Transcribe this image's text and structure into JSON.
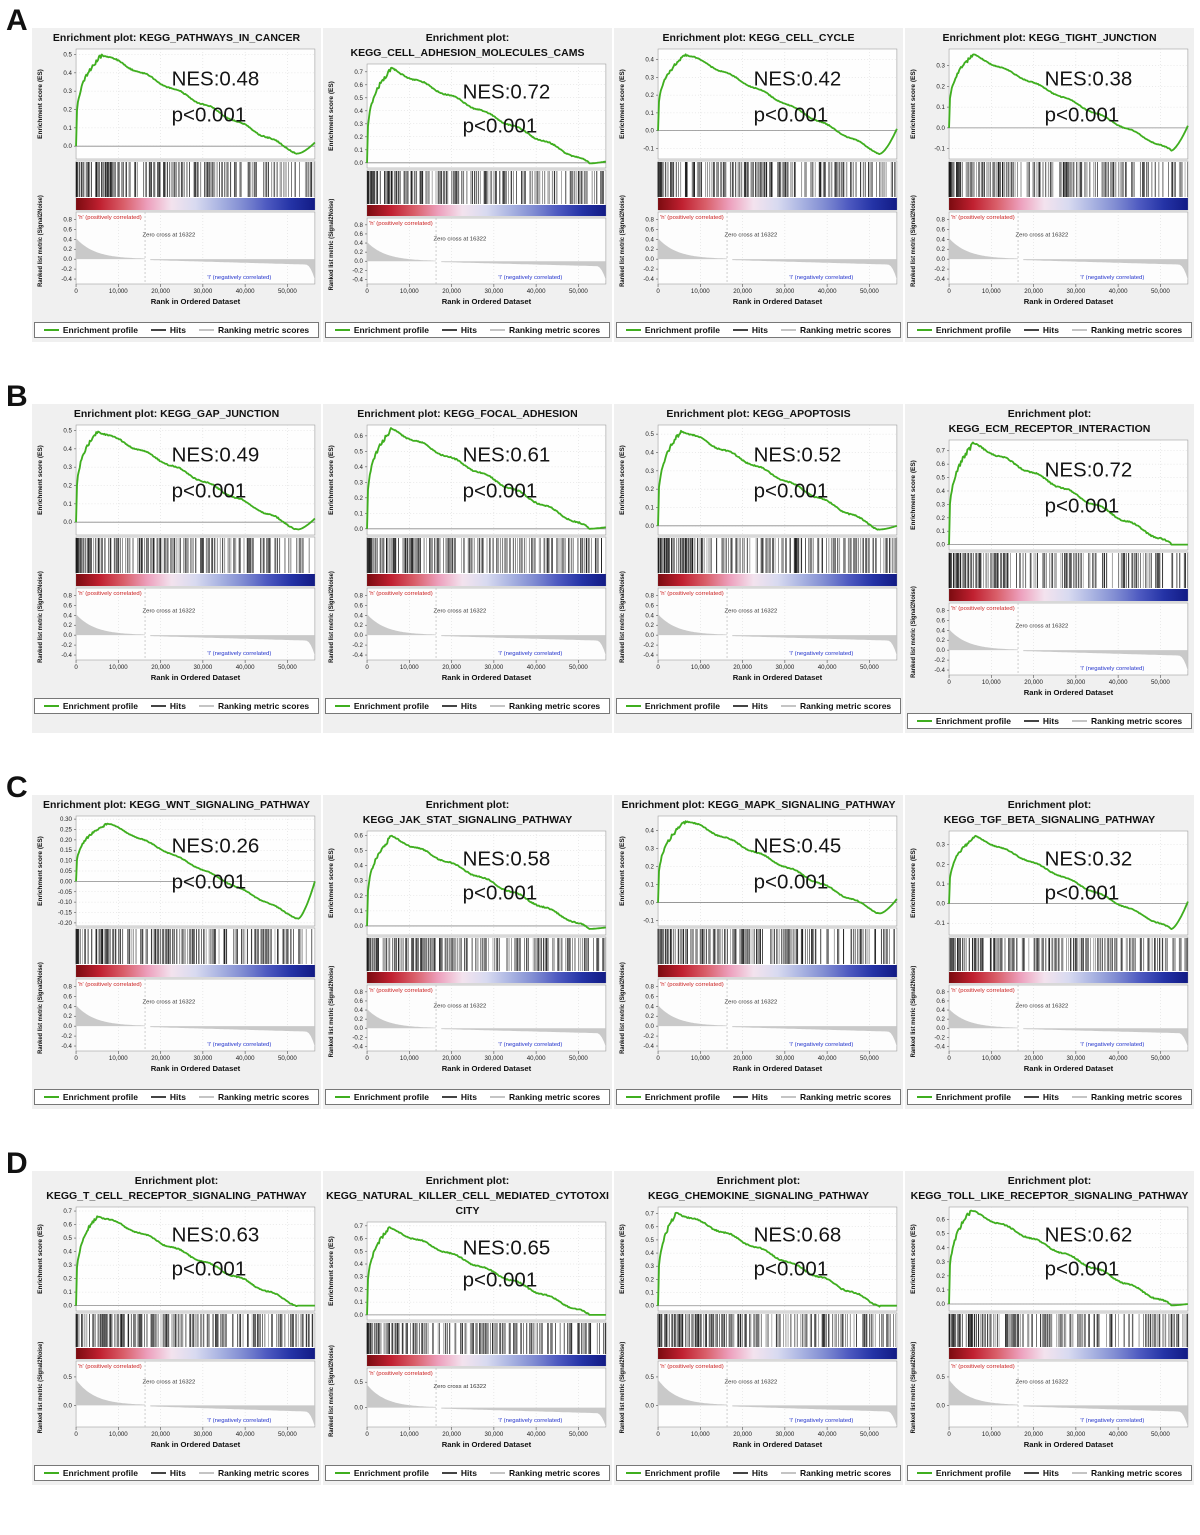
{
  "common": {
    "xlabel": "Rank in Ordered Dataset",
    "ylabel_es": "Enrichment score (ES)",
    "ylabel_rank": "Ranked list metric (Signal2Noise)",
    "zero_cross": "Zero cross at 16322",
    "pos_label": "'h' (positively correlated)",
    "neg_label": "'l' (negatively correlated)",
    "legend": [
      "Enrichment profile",
      "Hits",
      "Ranking metric scores"
    ],
    "x_tick_labels": [
      "0",
      "10,000",
      "20,000",
      "30,000",
      "40,000",
      "50,000"
    ],
    "colors": {
      "profile": "#3fae1f",
      "hits": "#1a1a1a",
      "rank_area": "#c9c9c9",
      "pos": "#cc2222",
      "neg": "#2233cc",
      "band": [
        "#7b0b10",
        "#c02030",
        "#d95f6a",
        "#eda0bd",
        "#f3e3ee",
        "#d8daf0",
        "#aab4e2",
        "#7f8bd2",
        "#4d59c0",
        "#2433a6",
        "#121b85"
      ]
    }
  },
  "figure": {
    "rows": [
      {
        "label": "A",
        "rank": {
          "ticks": [
            "0.8",
            "0.6",
            "0.4",
            "0.2",
            "0.0",
            "-0.2",
            "-0.4"
          ],
          "range": [
            0.95,
            -0.5
          ],
          "start": 0.42
        },
        "panels": [
          {
            "title_lines": [
              "Enrichment plot: KEGG_PATHWAYS_IN_CANCER"
            ],
            "nes": "NES:0.48",
            "p": "p<0.001",
            "es_ticks": [
              "0.5",
              "0.4",
              "0.3",
              "0.2",
              "0.1",
              "0.0"
            ],
            "es_range": [
              0.53,
              -0.07
            ],
            "curve": {
              "peak": 0.5,
              "peak_pos": 0.11,
              "min": -0.04,
              "end": 0.02
            }
          },
          {
            "title_lines": [
              "Enrichment plot:",
              "KEGG_CELL_ADHESION_MOLECULES_CAMS"
            ],
            "nes": "NES:0.72",
            "p": "p<0.001",
            "es_ticks": [
              "0.7",
              "0.6",
              "0.5",
              "0.4",
              "0.3",
              "0.2",
              "0.1",
              "0.0"
            ],
            "es_range": [
              0.76,
              -0.04
            ],
            "curve": {
              "peak": 0.72,
              "peak_pos": 0.1,
              "min": -0.005,
              "end": 0.01
            }
          },
          {
            "title_lines": [
              "Enrichment plot: KEGG_CELL_CYCLE"
            ],
            "nes": "NES:0.42",
            "p": "p<0.001",
            "es_ticks": [
              "0.4",
              "0.3",
              "0.2",
              "0.1",
              "0.0",
              "-0.1"
            ],
            "es_range": [
              0.46,
              -0.16
            ],
            "curve": {
              "peak": 0.43,
              "peak_pos": 0.12,
              "min": -0.13,
              "end": 0.01
            }
          },
          {
            "title_lines": [
              "Enrichment plot: KEGG_TIGHT_JUNCTION"
            ],
            "nes": "NES:0.38",
            "p": "p<0.001",
            "es_ticks": [
              "0.3",
              "0.2",
              "0.1",
              "0.0",
              "-0.1"
            ],
            "es_range": [
              0.38,
              -0.15
            ],
            "curve": {
              "peak": 0.35,
              "peak_pos": 0.1,
              "min": -0.11,
              "end": 0.01
            }
          }
        ]
      },
      {
        "label": "B",
        "rank": {
          "ticks": [
            "0.8",
            "0.6",
            "0.4",
            "0.2",
            "0.0",
            "-0.2",
            "-0.4"
          ],
          "range": [
            0.95,
            -0.5
          ],
          "start": 0.42
        },
        "panels": [
          {
            "title_lines": [
              "Enrichment plot: KEGG_GAP_JUNCTION"
            ],
            "nes": "NES:0.49",
            "p": "p<0.001",
            "es_ticks": [
              "0.5",
              "0.4",
              "0.3",
              "0.2",
              "0.1",
              "0.0"
            ],
            "es_range": [
              0.53,
              -0.07
            ],
            "curve": {
              "peak": 0.5,
              "peak_pos": 0.09,
              "min": -0.04,
              "end": 0.02
            }
          },
          {
            "title_lines": [
              "Enrichment plot: KEGG_FOCAL_ADHESION"
            ],
            "nes": "NES:0.61",
            "p": "p<0.001",
            "es_ticks": [
              "0.6",
              "0.5",
              "0.4",
              "0.3",
              "0.2",
              "0.1",
              "0.0"
            ],
            "es_range": [
              0.67,
              -0.04
            ],
            "curve": {
              "peak": 0.64,
              "peak_pos": 0.1,
              "min": 0.0,
              "end": 0.01
            }
          },
          {
            "title_lines": [
              "Enrichment plot: KEGG_APOPTOSIS"
            ],
            "nes": "NES:0.52",
            "p": "p<0.001",
            "es_ticks": [
              "0.5",
              "0.4",
              "0.3",
              "0.2",
              "0.1",
              "0.0"
            ],
            "es_range": [
              0.55,
              -0.05
            ],
            "curve": {
              "peak": 0.52,
              "peak_pos": 0.1,
              "min": -0.02,
              "end": 0.0
            }
          },
          {
            "title_lines": [
              "Enrichment plot: KEGG_ECM_RECEPTOR_INTERACTION"
            ],
            "nes": "NES:0.72",
            "p": "p<0.001",
            "es_ticks": [
              "0.7",
              "0.6",
              "0.5",
              "0.4",
              "0.3",
              "0.2",
              "0.1",
              "0.0"
            ],
            "es_range": [
              0.78,
              -0.04
            ],
            "curve": {
              "peak": 0.75,
              "peak_pos": 0.1,
              "min": 0.0,
              "end": 0.0
            }
          }
        ]
      },
      {
        "label": "C",
        "rank": {
          "ticks": [
            "0.8",
            "0.6",
            "0.4",
            "0.2",
            "0.0",
            "-0.2",
            "-0.4"
          ],
          "range": [
            0.95,
            -0.5
          ],
          "start": 0.42
        },
        "panels": [
          {
            "title_lines": [
              "Enrichment plot: KEGG_WNT_SIGNALING_PATHWAY"
            ],
            "nes": "NES:0.26",
            "p": "p<0.001",
            "es_ticks": [
              "0.30",
              "0.25",
              "0.20",
              "0.15",
              "0.10",
              "0.05",
              "0.00",
              "-0.05",
              "-0.10",
              "-0.15",
              "-0.20"
            ],
            "es_range": [
              0.315,
              -0.215
            ],
            "curve": {
              "peak": 0.28,
              "peak_pos": 0.13,
              "min": -0.18,
              "end": 0.0
            }
          },
          {
            "title_lines": [
              "Enrichment plot:",
              "KEGG_JAK_STAT_SIGNALING_PATHWAY"
            ],
            "nes": "NES:0.58",
            "p": "p<0.001",
            "es_ticks": [
              "0.6",
              "0.5",
              "0.4",
              "0.3",
              "0.2",
              "0.1",
              "0.0"
            ],
            "es_range": [
              0.63,
              -0.06
            ],
            "curve": {
              "peak": 0.59,
              "peak_pos": 0.1,
              "min": -0.02,
              "end": -0.01
            }
          },
          {
            "title_lines": [
              "Enrichment plot: KEGG_MAPK_SIGNALING_PATHWAY"
            ],
            "nes": "NES:0.45",
            "p": "p<0.001",
            "es_ticks": [
              "0.4",
              "0.3",
              "0.2",
              "0.1",
              "0.0",
              "-0.1"
            ],
            "es_range": [
              0.48,
              -0.13
            ],
            "curve": {
              "peak": 0.455,
              "peak_pos": 0.12,
              "min": -0.06,
              "end": 0.02
            }
          },
          {
            "title_lines": [
              "Enrichment plot:",
              "KEGG_TGF_BETA_SIGNALING_PATHWAY"
            ],
            "nes": "NES:0.32",
            "p": "p<0.001",
            "es_ticks": [
              "0.3",
              "0.2",
              "0.1",
              "0.0",
              "-0.1"
            ],
            "es_range": [
              0.37,
              -0.16
            ],
            "curve": {
              "peak": 0.34,
              "peak_pos": 0.11,
              "min": -0.13,
              "end": 0.01
            }
          }
        ]
      },
      {
        "label": "D",
        "rank": {
          "ticks": [
            "0.5",
            "0.0"
          ],
          "range": [
            0.78,
            -0.38
          ],
          "start": 0.45
        },
        "panels": [
          {
            "title_lines": [
              "Enrichment plot:",
              "KEGG_T_CELL_RECEPTOR_SIGNALING_PATHWAY"
            ],
            "nes": "NES:0.63",
            "p": "p<0.001",
            "es_ticks": [
              "0.7",
              "0.6",
              "0.5",
              "0.4",
              "0.3",
              "0.2",
              "0.1",
              "0.0"
            ],
            "es_range": [
              0.73,
              -0.04
            ],
            "curve": {
              "peak": 0.67,
              "peak_pos": 0.09,
              "min": 0.0,
              "end": 0.0
            }
          },
          {
            "title_lines": [
              "Enrichment plot:",
              "KEGG_NATURAL_KILLER_CELL_MEDIATED_CYTOTOXI",
              "CITY"
            ],
            "nes": "NES:0.65",
            "p": "p<0.001",
            "es_ticks": [
              "0.7",
              "0.6",
              "0.5",
              "0.4",
              "0.3",
              "0.2",
              "0.1",
              "0.0"
            ],
            "es_range": [
              0.73,
              -0.04
            ],
            "curve": {
              "peak": 0.68,
              "peak_pos": 0.09,
              "min": 0.0,
              "end": 0.0
            }
          },
          {
            "title_lines": [
              "Enrichment plot:",
              "KEGG_CHEMOKINE_SIGNALING_PATHWAY"
            ],
            "nes": "NES:0.68",
            "p": "p<0.001",
            "es_ticks": [
              "0.7",
              "0.6",
              "0.5",
              "0.4",
              "0.3",
              "0.2",
              "0.1",
              "0.0"
            ],
            "es_range": [
              0.75,
              -0.04
            ],
            "curve": {
              "peak": 0.71,
              "peak_pos": 0.08,
              "min": 0.0,
              "end": 0.0
            }
          },
          {
            "title_lines": [
              "Enrichment plot:",
              "KEGG_TOLL_LIKE_RECEPTOR_SIGNALING_PATHWAY"
            ],
            "nes": "NES:0.62",
            "p": "p<0.001",
            "es_ticks": [
              "0.6",
              "0.5",
              "0.4",
              "0.3",
              "0.2",
              "0.1",
              "0.0"
            ],
            "es_range": [
              0.69,
              -0.05
            ],
            "curve": {
              "peak": 0.66,
              "peak_pos": 0.09,
              "min": -0.01,
              "end": 0.0
            }
          }
        ]
      }
    ]
  },
  "chart_data": [
    {
      "type": "line",
      "panel": "A1",
      "gene_set": "KEGG_PATHWAYS_IN_CANCER",
      "NES": 0.48,
      "p": "p<0.001",
      "es_peak": 0.5,
      "es_axis": [
        0.0,
        0.5
      ],
      "zero_cross": 16322,
      "xlabel": "Rank in Ordered Dataset",
      "ylabel": "Enrichment score (ES)"
    },
    {
      "type": "line",
      "panel": "A2",
      "gene_set": "KEGG_CELL_ADHESION_MOLECULES_CAMS",
      "NES": 0.72,
      "p": "p<0.001",
      "es_peak": 0.72,
      "es_axis": [
        0.0,
        0.7
      ],
      "zero_cross": 16322,
      "xlabel": "Rank in Ordered Dataset",
      "ylabel": "Enrichment score (ES)"
    },
    {
      "type": "line",
      "panel": "A3",
      "gene_set": "KEGG_CELL_CYCLE",
      "NES": 0.42,
      "p": "p<0.001",
      "es_peak": 0.43,
      "es_axis": [
        -0.1,
        0.4
      ],
      "zero_cross": 16322,
      "xlabel": "Rank in Ordered Dataset",
      "ylabel": "Enrichment score (ES)"
    },
    {
      "type": "line",
      "panel": "A4",
      "gene_set": "KEGG_TIGHT_JUNCTION",
      "NES": 0.38,
      "p": "p<0.001",
      "es_peak": 0.35,
      "es_axis": [
        -0.1,
        0.3
      ],
      "zero_cross": 16322,
      "xlabel": "Rank in Ordered Dataset",
      "ylabel": "Enrichment score (ES)"
    },
    {
      "type": "line",
      "panel": "B1",
      "gene_set": "KEGG_GAP_JUNCTION",
      "NES": 0.49,
      "p": "p<0.001",
      "es_peak": 0.5,
      "es_axis": [
        0.0,
        0.5
      ],
      "zero_cross": 16322,
      "xlabel": "Rank in Ordered Dataset",
      "ylabel": "Enrichment score (ES)"
    },
    {
      "type": "line",
      "panel": "B2",
      "gene_set": "KEGG_FOCAL_ADHESION",
      "NES": 0.61,
      "p": "p<0.001",
      "es_peak": 0.64,
      "es_axis": [
        0.0,
        0.6
      ],
      "zero_cross": 16322,
      "xlabel": "Rank in Ordered Dataset",
      "ylabel": "Enrichment score (ES)"
    },
    {
      "type": "line",
      "panel": "B3",
      "gene_set": "KEGG_APOPTOSIS",
      "NES": 0.52,
      "p": "p<0.001",
      "es_peak": 0.52,
      "es_axis": [
        0.0,
        0.5
      ],
      "zero_cross": 16322,
      "xlabel": "Rank in Ordered Dataset",
      "ylabel": "Enrichment score (ES)"
    },
    {
      "type": "line",
      "panel": "B4",
      "gene_set": "KEGG_ECM_RECEPTOR_INTERACTION",
      "NES": 0.72,
      "p": "p<0.001",
      "es_peak": 0.75,
      "es_axis": [
        0.0,
        0.7
      ],
      "zero_cross": 16322,
      "xlabel": "Rank in Ordered Dataset",
      "ylabel": "Enrichment score (ES)"
    },
    {
      "type": "line",
      "panel": "C1",
      "gene_set": "KEGG_WNT_SIGNALING_PATHWAY",
      "NES": 0.26,
      "p": "p<0.001",
      "es_peak": 0.28,
      "es_axis": [
        -0.2,
        0.3
      ],
      "zero_cross": 16322,
      "xlabel": "Rank in Ordered Dataset",
      "ylabel": "Enrichment score (ES)"
    },
    {
      "type": "line",
      "panel": "C2",
      "gene_set": "KEGG_JAK_STAT_SIGNALING_PATHWAY",
      "NES": 0.58,
      "p": "p<0.001",
      "es_peak": 0.59,
      "es_axis": [
        0.0,
        0.6
      ],
      "zero_cross": 16322,
      "xlabel": "Rank in Ordered Dataset",
      "ylabel": "Enrichment score (ES)"
    },
    {
      "type": "line",
      "panel": "C3",
      "gene_set": "KEGG_MAPK_SIGNALING_PATHWAY",
      "NES": 0.45,
      "p": "p<0.001",
      "es_peak": 0.455,
      "es_axis": [
        -0.1,
        0.4
      ],
      "zero_cross": 16322,
      "xlabel": "Rank in Ordered Dataset",
      "ylabel": "Enrichment score (ES)"
    },
    {
      "type": "line",
      "panel": "C4",
      "gene_set": "KEGG_TGF_BETA_SIGNALING_PATHWAY",
      "NES": 0.32,
      "p": "p<0.001",
      "es_peak": 0.34,
      "es_axis": [
        -0.1,
        0.3
      ],
      "zero_cross": 16322,
      "xlabel": "Rank in Ordered Dataset",
      "ylabel": "Enrichment score (ES)"
    },
    {
      "type": "line",
      "panel": "D1",
      "gene_set": "KEGG_T_CELL_RECEPTOR_SIGNALING_PATHWAY",
      "NES": 0.63,
      "p": "p<0.001",
      "es_peak": 0.67,
      "es_axis": [
        0.0,
        0.7
      ],
      "zero_cross": 16322,
      "xlabel": "Rank in Ordered Dataset",
      "ylabel": "Enrichment score (ES)"
    },
    {
      "type": "line",
      "panel": "D2",
      "gene_set": "KEGG_NATURAL_KILLER_CELL_MEDIATED_CYTOTOXICITY",
      "NES": 0.65,
      "p": "p<0.001",
      "es_peak": 0.68,
      "es_axis": [
        0.0,
        0.7
      ],
      "zero_cross": 16322,
      "xlabel": "Rank in Ordered Dataset",
      "ylabel": "Enrichment score (ES)"
    },
    {
      "type": "line",
      "panel": "D3",
      "gene_set": "KEGG_CHEMOKINE_SIGNALING_PATHWAY",
      "NES": 0.68,
      "p": "p<0.001",
      "es_peak": 0.71,
      "es_axis": [
        0.0,
        0.7
      ],
      "zero_cross": 16322,
      "xlabel": "Rank in Ordered Dataset",
      "ylabel": "Enrichment score (ES)"
    },
    {
      "type": "line",
      "panel": "D4",
      "gene_set": "KEGG_TOLL_LIKE_RECEPTOR_SIGNALING_PATHWAY",
      "NES": 0.62,
      "p": "p<0.001",
      "es_peak": 0.66,
      "es_axis": [
        0.0,
        0.6
      ],
      "zero_cross": 16322,
      "xlabel": "Rank in Ordered Dataset",
      "ylabel": "Enrichment score (ES)"
    }
  ]
}
